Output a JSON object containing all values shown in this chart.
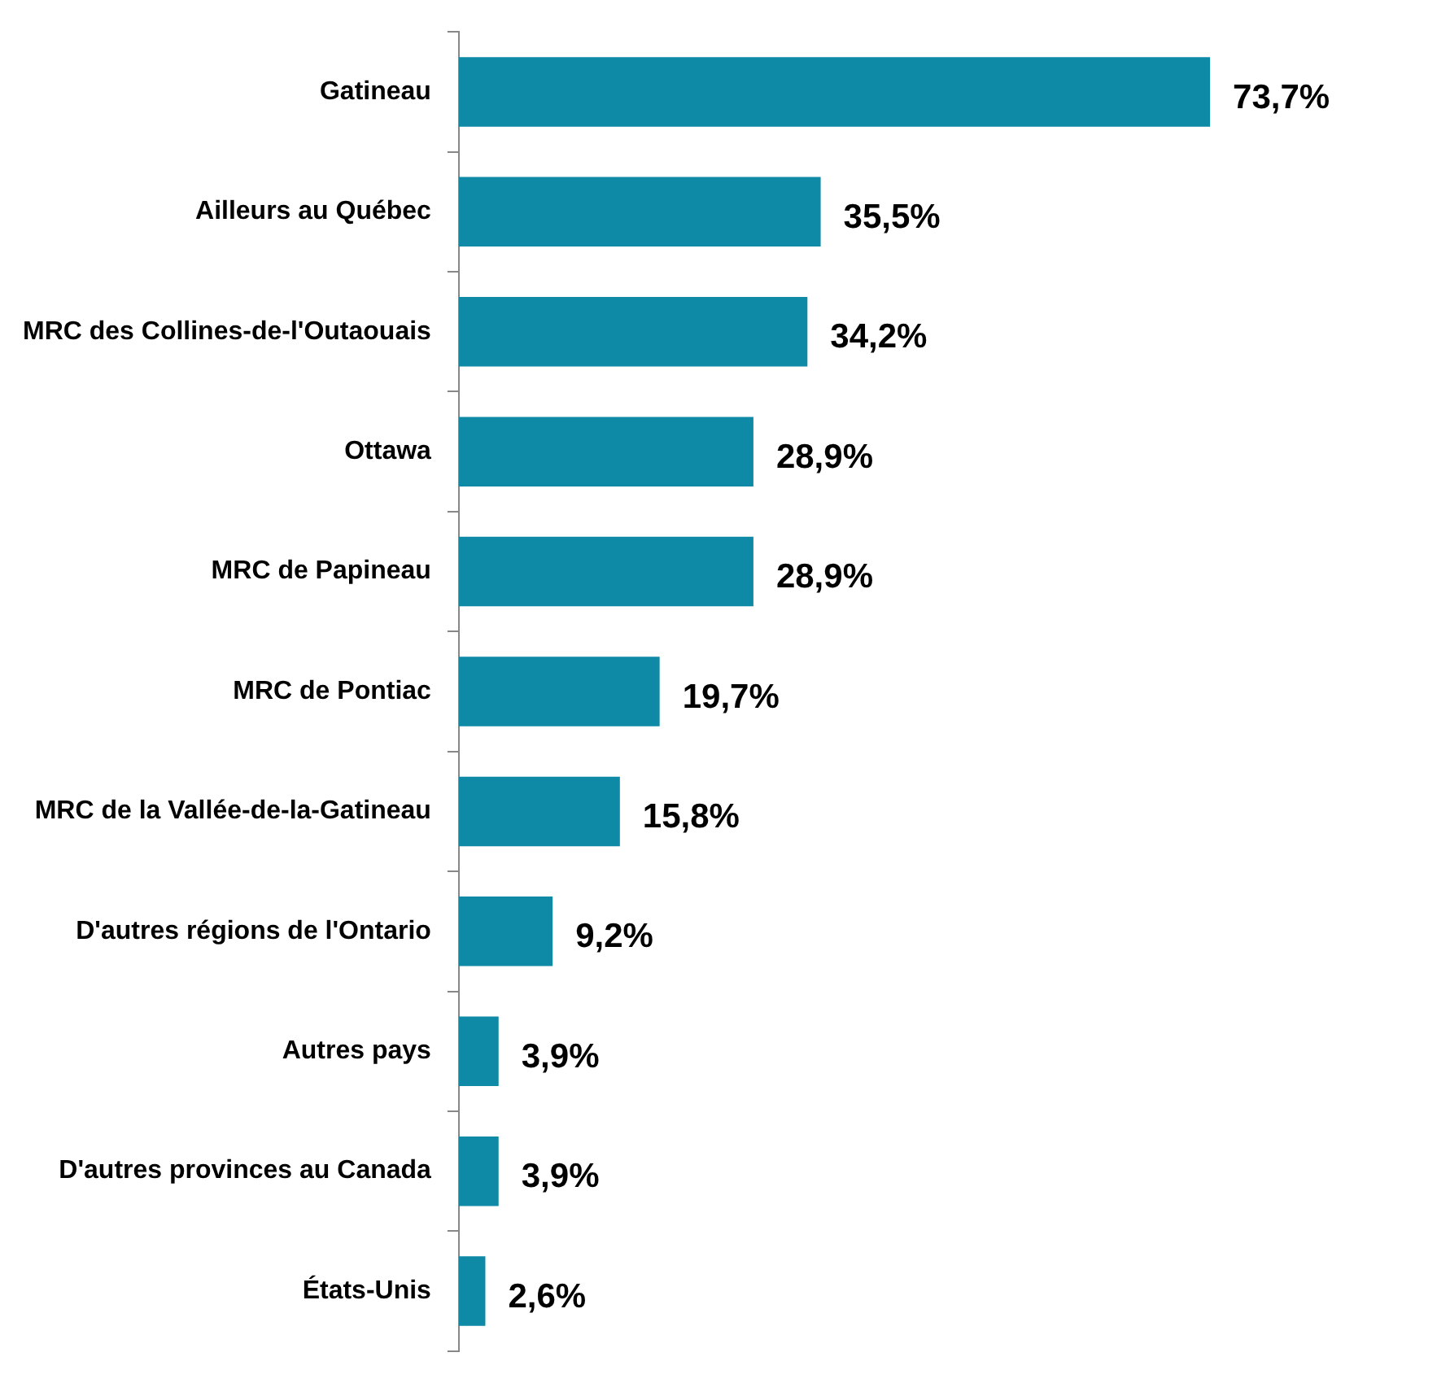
{
  "chart_data": {
    "type": "bar",
    "orientation": "horizontal",
    "categories": [
      "Gatineau",
      "Ailleurs au Québec",
      "MRC des Collines-de-l'Outaouais",
      "Ottawa",
      "MRC de Papineau",
      "MRC de Pontiac",
      "MRC de la Vallée-de-la-Gatineau",
      "D'autres régions de l'Ontario",
      "Autres pays",
      "D'autres provinces au Canada",
      "États-Unis"
    ],
    "values": [
      73.7,
      35.5,
      34.2,
      28.9,
      28.9,
      19.7,
      15.8,
      9.2,
      3.9,
      3.9,
      2.6
    ],
    "value_labels": [
      "73,7%",
      "35,5%",
      "34,2%",
      "28,9%",
      "28,9%",
      "19,7%",
      "15,8%",
      "9,2%",
      "3,9%",
      "3,9%",
      "2,6%"
    ],
    "color": "#0e89a6",
    "tick_labels": "y"
  }
}
